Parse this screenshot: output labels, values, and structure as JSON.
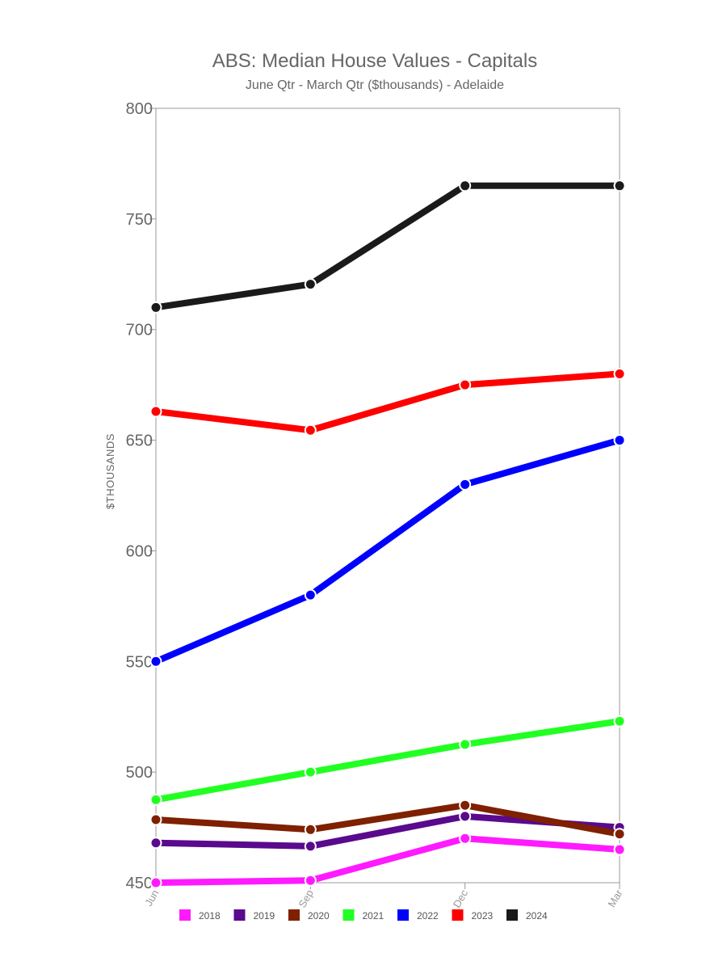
{
  "chart_data": {
    "type": "line",
    "title": "ABS: Median House Values - Capitals",
    "subtitle": "June Qtr - March Qtr ($thousands) - Adelaide",
    "ylabel": "$THOUSANDS",
    "xlabel": "",
    "categories": [
      "Jun",
      "Sep",
      "Dec",
      "Mar"
    ],
    "ylim": [
      450,
      800
    ],
    "yticks": [
      450,
      500,
      550,
      600,
      650,
      700,
      750,
      800
    ],
    "grid": false,
    "legend_position": "bottom",
    "series": [
      {
        "name": "2018",
        "color": "#ff1aff",
        "values": [
          450,
          451,
          470,
          465
        ]
      },
      {
        "name": "2019",
        "color": "#5a0a8c",
        "values": [
          468,
          466.5,
          480,
          475
        ]
      },
      {
        "name": "2020",
        "color": "#7f2000",
        "values": [
          478.5,
          474,
          485,
          472
        ]
      },
      {
        "name": "2021",
        "color": "#22ff22",
        "values": [
          487.5,
          500,
          512.5,
          523
        ]
      },
      {
        "name": "2022",
        "color": "#0000ff",
        "values": [
          550,
          580,
          630,
          650
        ]
      },
      {
        "name": "2023",
        "color": "#ff0000",
        "values": [
          663,
          654.5,
          675,
          680
        ]
      },
      {
        "name": "2024",
        "color": "#1a1a1a",
        "values": [
          710,
          720.5,
          765,
          765
        ]
      }
    ]
  }
}
